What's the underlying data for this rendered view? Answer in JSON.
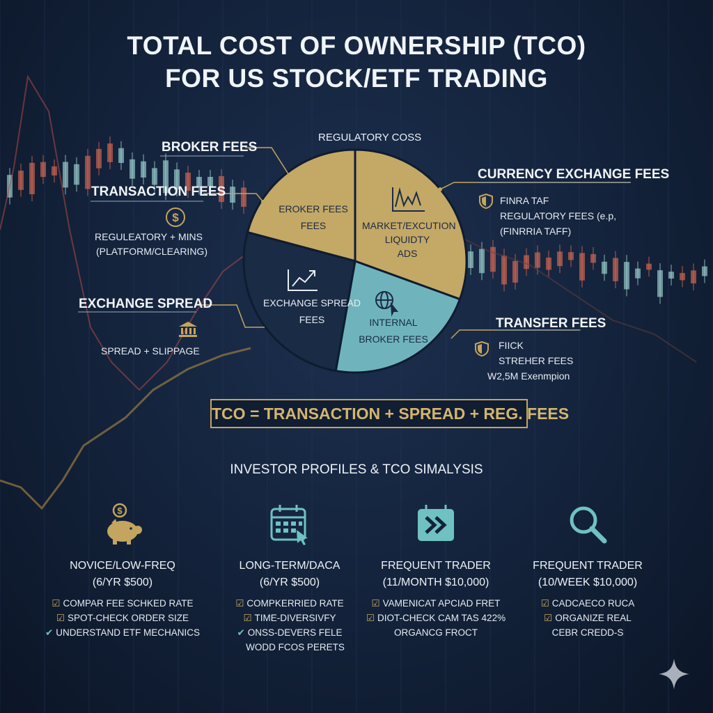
{
  "title": {
    "line1": "TOTAL COST OF OWNERSHIP (TCO)",
    "line2": "FOR US STOCK/ETF TRADING"
  },
  "pie": {
    "top_label": "REGULATORY COSS",
    "slices": [
      {
        "line1": "EROKER FEES",
        "line2": "FEES",
        "color": "#c4a866"
      },
      {
        "line1": "MARKET/EXCUTION",
        "line2": "LIQUIDTY",
        "line3": "ADS",
        "color": "#c4a866"
      },
      {
        "line1": "INTERNAL",
        "line2": "BROKER FEES",
        "color": "#6fb4bc"
      },
      {
        "line1": "EXCHANGE SPREAD",
        "line2": "FEES",
        "color": "#1a2b45"
      }
    ],
    "icons": {
      "market": "chart-line-icon",
      "exchange": "trend-up-icon",
      "internal": "globe-cursor-icon"
    }
  },
  "callouts": {
    "broker_fees": "BROKER FEES",
    "transaction_fees": "TRANSACTION FEES",
    "transaction_sub1": "REGULEATORY + MINS",
    "transaction_sub2": "(PLATFORM/CLEARING)",
    "exchange_spread": "EXCHANGE SPREAD",
    "exchange_sub": "SPREAD + SLIPPAGE",
    "currency_fees": "CURRENCY EXCHANGE FEES",
    "currency_sub1": "FINRA TAF",
    "currency_sub2": "REGULATORY FEES (e.p,",
    "currency_sub3": "(FINRRIA TAFF)",
    "transfer_fees": "TRANSFER FEES",
    "transfer_sub1": "FIICK",
    "transfer_sub2": "STREHER FEES",
    "transfer_sub3": "W2,5M Exenmpion"
  },
  "formula": "TCO = TRANSACTION + SPREAD + REG. FEES",
  "profiles_title": "INVESTOR PROFILES & TCO SIMALYSIS",
  "profiles": [
    {
      "name": "NOVICE/LOW-FREQ",
      "budget": "(6/YR $500)",
      "icon": "piggy-bank-icon",
      "items": [
        "COMPAR FEE SCHKED RATE",
        "SPOT-CHECK ORDER SIZE",
        "UNDERSTAND ETF MECHANICS"
      ]
    },
    {
      "name": "LONG-TERM/DACA",
      "budget": "(6/YR $500)",
      "icon": "calendar-icon",
      "items": [
        "COMPKERRIED RATE",
        "TIME-DIVERSIVFY",
        "ONSS-DEVERS FELE",
        "WODD FCOS PERETS"
      ]
    },
    {
      "name": "FREQUENT TRADER",
      "budget": "(11/MONTH $10,000)",
      "icon": "fast-forward-icon",
      "items": [
        "VAMENICAT APCIAD FRET",
        "DIOT-CHECK CAM TAS 422%",
        "ORGANCG FROCT"
      ]
    },
    {
      "name": "FREQUENT TRADER",
      "budget": "(10/WEEK $10,000)",
      "icon": "magnifier-icon",
      "items": [
        "CADCAECO RUCA",
        "ORGANIZE REAL",
        "CEBR CREDD-S"
      ]
    }
  ],
  "colors": {
    "gold": "#c4a866",
    "teal": "#6fb4bc",
    "navy": "#1a2b45",
    "background": "#13223a"
  }
}
